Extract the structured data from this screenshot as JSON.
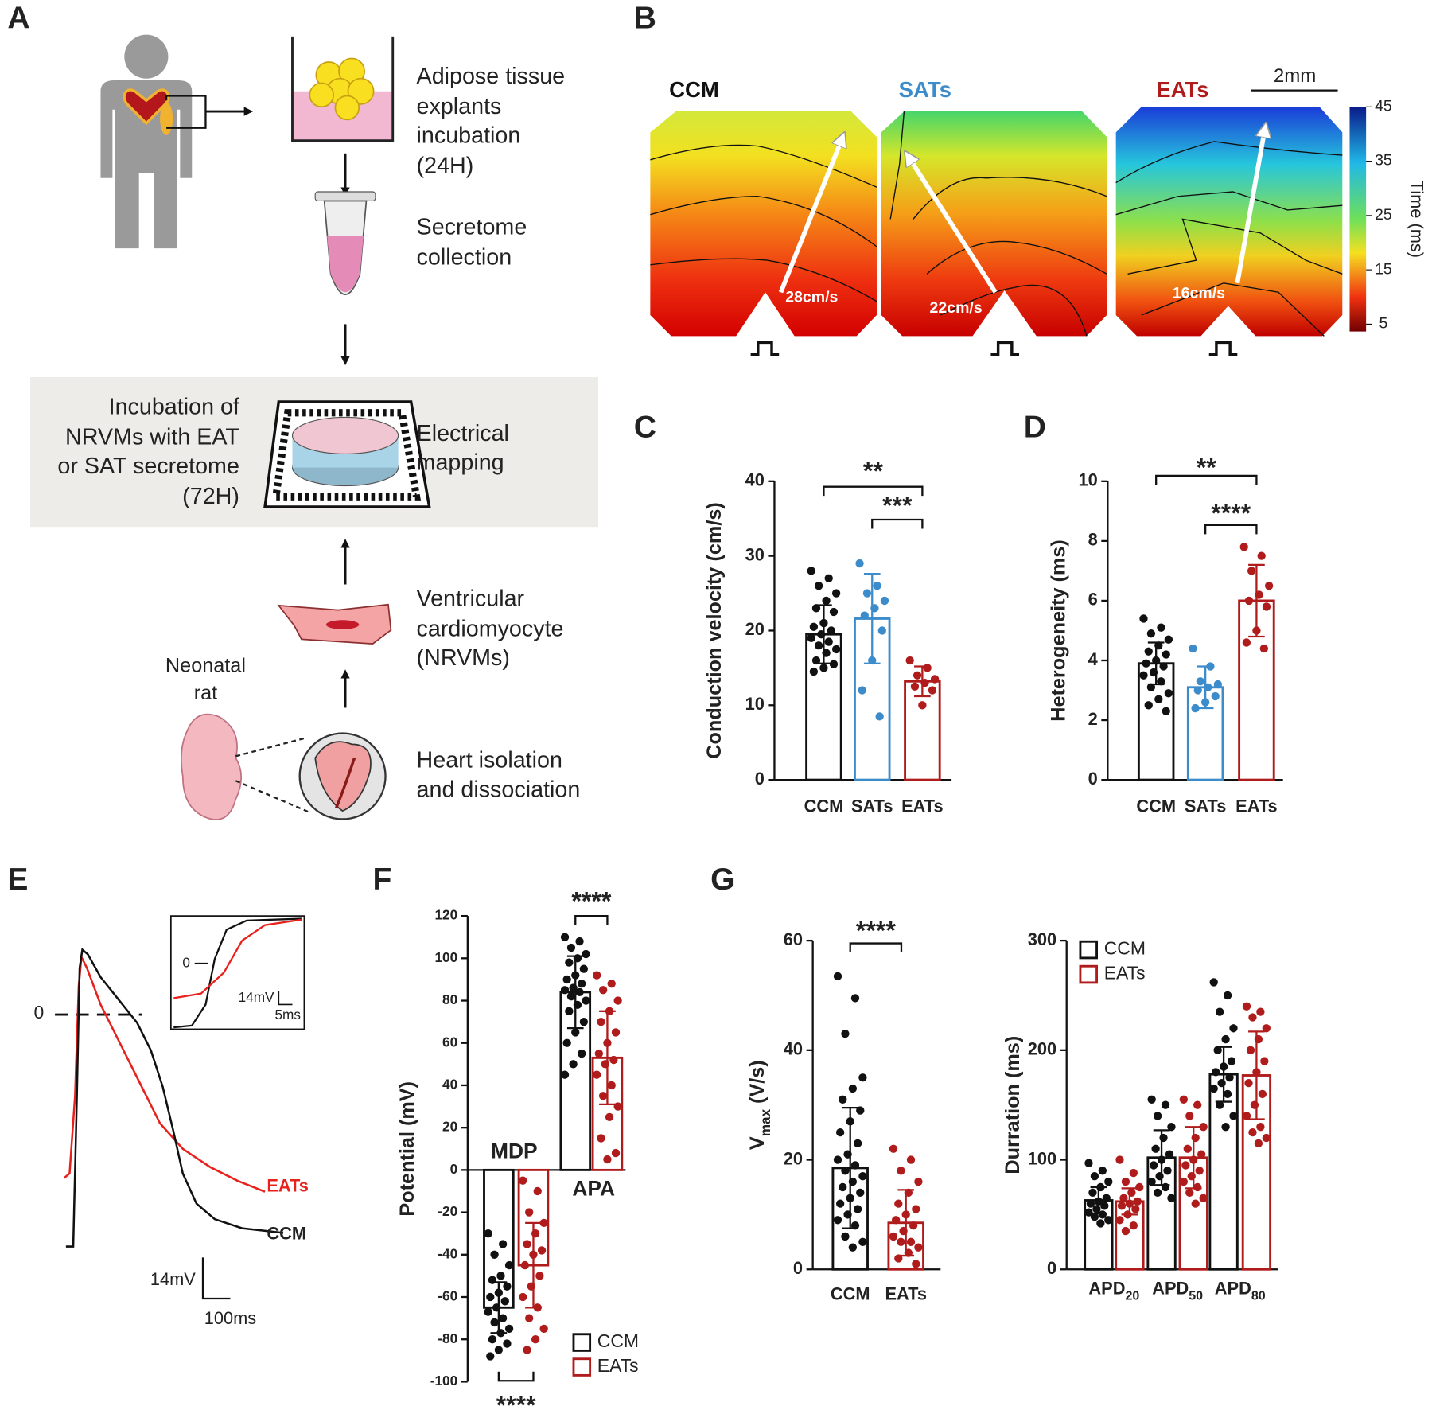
{
  "panels": [
    "A",
    "B",
    "C",
    "D",
    "E",
    "F",
    "G"
  ],
  "panel_a": {
    "explant": [
      "Adipose tissue",
      "explants",
      "incubation",
      "(24H)"
    ],
    "secretome": [
      "Secretome",
      "collection"
    ],
    "incubation": [
      "Incubation of",
      "NRVMs with EAT",
      "or SAT secretome",
      "(72H)"
    ],
    "mapping": [
      "Electrical",
      "mapping"
    ],
    "cardiomyocyte": [
      "Ventricular",
      "cardiomyocyte",
      "(NRVMs)"
    ],
    "rat": [
      "Neonatal",
      "rat"
    ],
    "heart": [
      "Heart isolation",
      "and dissociation"
    ]
  },
  "panel_b": {
    "maps": [
      "CCM",
      "SATs",
      "EATs"
    ],
    "colors": [
      "#111111",
      "#3c8ccb",
      "#b01c1c"
    ],
    "speeds": [
      "28cm/s",
      "22cm/s",
      "16cm/s"
    ],
    "scale": "2mm",
    "colorbar_ticks": [
      45,
      35,
      25,
      15,
      5
    ],
    "colorbar_label": "Time (ms)"
  },
  "panel_e": {
    "zero": "0",
    "traces": [
      "EATs",
      "CCM"
    ],
    "trace_colors": [
      "#e8211d",
      "#111111"
    ],
    "scale_v": "14mV",
    "scale_t": "100ms",
    "inset_zero": "0",
    "inset_v": "14mV",
    "inset_t": "5ms"
  },
  "chart_data": [
    {
      "type": "bar",
      "y_label": "Conduction velocity (cm/s)",
      "categories": [
        "CCM",
        "SATs",
        "EATs"
      ],
      "colors": [
        "#111111",
        "#3c8ccb",
        "#b01c1c"
      ],
      "values": [
        19.5,
        21.6,
        13.2
      ],
      "errors": [
        3.9,
        6.0,
        2.0
      ],
      "points": [
        [
          28,
          27,
          26,
          25,
          24,
          23,
          22.5,
          21,
          20.5,
          20,
          19.5,
          19,
          18.5,
          18,
          17.5,
          17,
          16,
          15.5,
          15,
          14.5
        ],
        [
          29,
          26,
          25,
          24,
          23,
          22,
          20,
          16,
          12,
          8.5
        ],
        [
          16,
          15,
          14,
          13.5,
          13,
          12.5,
          12,
          10
        ]
      ],
      "ylim": [
        0,
        40
      ],
      "yticks": [
        0,
        10,
        20,
        30,
        40
      ],
      "significance": [
        "**",
        "***"
      ]
    },
    {
      "type": "bar",
      "y_label": "Heterogeneity (ms)",
      "categories": [
        "CCM",
        "SATs",
        "EATs"
      ],
      "colors": [
        "#111111",
        "#3c8ccb",
        "#b01c1c"
      ],
      "values": [
        3.9,
        3.1,
        6.0
      ],
      "errors": [
        0.7,
        0.7,
        1.2
      ],
      "points": [
        [
          5.4,
          5.1,
          4.9,
          4.7,
          4.5,
          4.3,
          4.2,
          4.0,
          3.9,
          3.8,
          3.6,
          3.5,
          3.3,
          3.1,
          2.9,
          2.7,
          2.5,
          2.3
        ],
        [
          4.4,
          3.8,
          3.3,
          3.2,
          3.1,
          3.0,
          2.8,
          2.6,
          2.4
        ],
        [
          7.8,
          7.5,
          7.0,
          6.5,
          6.2,
          6.0,
          5.8,
          5.0,
          4.6,
          4.4
        ]
      ],
      "ylim": [
        0,
        10
      ],
      "yticks": [
        0,
        2,
        4,
        6,
        8,
        10
      ],
      "significance": [
        "**",
        "****"
      ]
    },
    {
      "type": "bar",
      "y_label": "Potential (mV)",
      "categories": [
        "MDP",
        "APA"
      ],
      "series": [
        {
          "name": "CCM",
          "color": "#111111",
          "values": [
            -65,
            84
          ],
          "errors": [
            12,
            17
          ],
          "points": [
            [
              -30,
              -35,
              -40,
              -45,
              -50,
              -52,
              -55,
              -58,
              -60,
              -62,
              -65,
              -67,
              -70,
              -72,
              -75,
              -77,
              -80,
              -82,
              -85,
              -88
            ],
            [
              110,
              108,
              105,
              102,
              100,
              98,
              95,
              92,
              90,
              88,
              86,
              85,
              84,
              82,
              80,
              78,
              75,
              70,
              65,
              60,
              55,
              50,
              45
            ]
          ]
        },
        {
          "name": "EATs",
          "color": "#b01c1c",
          "values": [
            -45,
            53
          ],
          "errors": [
            20,
            22
          ],
          "points": [
            [
              -5,
              -10,
              -20,
              -25,
              -30,
              -35,
              -38,
              -40,
              -45,
              -50,
              -55,
              -60,
              -65,
              -70,
              -75,
              -80,
              -85
            ],
            [
              92,
              88,
              85,
              80,
              75,
              70,
              65,
              60,
              55,
              52,
              50,
              45,
              40,
              35,
              30,
              25,
              15,
              8,
              5
            ]
          ]
        }
      ],
      "ylim": [
        -100,
        120
      ],
      "yticks": [
        -100,
        -80,
        -60,
        -40,
        -20,
        0,
        20,
        40,
        60,
        80,
        100,
        120
      ],
      "significance": [
        "****",
        "****"
      ],
      "legend": "bottom right"
    },
    {
      "type": "bar",
      "y_label": "V",
      "y_label_subscript": "max",
      "y_label_unit": "(V/s)",
      "categories": [
        "CCM",
        "EATs"
      ],
      "colors": [
        "#111111",
        "#b01c1c"
      ],
      "values": [
        18.5,
        8.5
      ],
      "errors": [
        11,
        6
      ],
      "points": [
        [
          53.5,
          49.5,
          43,
          35,
          33,
          31,
          29,
          27,
          25,
          23,
          21,
          20,
          19,
          18,
          17,
          16,
          15,
          14,
          13,
          12,
          11,
          10,
          9,
          8,
          6,
          5,
          4
        ],
        [
          22,
          20,
          18,
          16,
          14,
          12,
          11,
          10,
          9,
          8,
          7,
          6,
          5,
          5,
          4,
          3,
          2,
          1
        ]
      ],
      "ylim": [
        0,
        60
      ],
      "yticks": [
        0,
        20,
        40,
        60
      ],
      "significance": [
        "****"
      ]
    },
    {
      "type": "bar",
      "y_label": "Durration (ms)",
      "categories": [
        "APD",
        "APD",
        "APD"
      ],
      "category_subscripts": [
        "20",
        "50",
        "80"
      ],
      "series": [
        {
          "name": "CCM",
          "color": "#111111",
          "values": [
            63,
            102,
            178
          ],
          "errors": [
            12,
            25,
            25
          ],
          "points": [
            [
              97,
              90,
              85,
              80,
              75,
              70,
              65,
              62,
              60,
              58,
              55,
              52,
              50,
              48,
              45,
              42
            ],
            [
              155,
              150,
              140,
              130,
              120,
              110,
              105,
              100,
              95,
              90,
              85,
              80,
              75,
              70,
              65
            ],
            [
              262,
              250,
              235,
              220,
              210,
              200,
              190,
              185,
              180,
              175,
              170,
              165,
              160,
              150,
              140,
              130
            ]
          ]
        },
        {
          "name": "EATs",
          "color": "#b01c1c",
          "values": [
            62,
            102,
            177
          ],
          "errors": [
            12,
            28,
            40
          ],
          "points": [
            [
              100,
              88,
              80,
              75,
              70,
              65,
              62,
              60,
              58,
              55,
              50,
              45,
              40,
              35
            ],
            [
              155,
              150,
              140,
              130,
              120,
              110,
              105,
              100,
              95,
              90,
              85,
              80,
              75,
              70,
              65,
              60
            ],
            [
              240,
              235,
              230,
              220,
              210,
              200,
              190,
              180,
              170,
              160,
              150,
              140,
              130,
              125,
              120,
              115
            ]
          ]
        }
      ],
      "ylim": [
        0,
        300
      ],
      "yticks": [
        0,
        100,
        200,
        300
      ],
      "legend": "top left"
    }
  ]
}
